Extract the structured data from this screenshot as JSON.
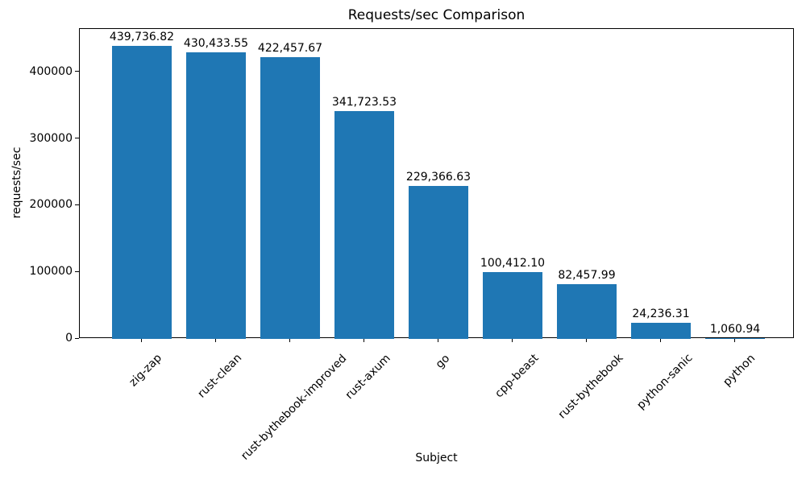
{
  "chart_data": {
    "type": "bar",
    "title": "Requests/sec Comparison",
    "xlabel": "Subject",
    "ylabel": "requests/sec",
    "categories": [
      "zig-zap",
      "rust-clean",
      "rust-bythebook-improved",
      "rust-axum",
      "go",
      "cpp-beast",
      "rust-bythebook",
      "python-sanic",
      "python"
    ],
    "values": [
      439736.82,
      430433.55,
      422457.67,
      341723.53,
      229366.63,
      100412.1,
      82457.99,
      24236.31,
      1060.94
    ],
    "value_labels": [
      "439,736.82",
      "430,433.55",
      "422,457.67",
      "341,723.53",
      "229,366.63",
      "100,412.10",
      "82,457.99",
      "24,236.31",
      "1,060.94"
    ],
    "yticks": [
      0,
      100000,
      200000,
      300000,
      400000
    ],
    "ytick_labels": [
      "0",
      "100000",
      "200000",
      "300000",
      "400000"
    ],
    "ylim": [
      0,
      465000
    ],
    "x_tick_rotation_deg": 45,
    "bar_color": "#1f77b4",
    "text_color": "#000000",
    "grid": false,
    "legend": false
  }
}
